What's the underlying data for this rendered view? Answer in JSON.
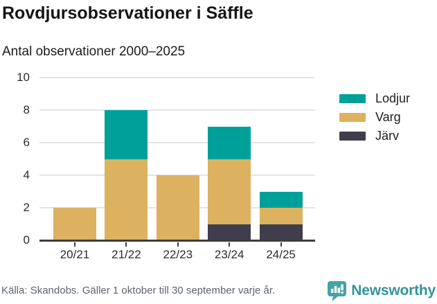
{
  "header": {
    "title": "Rovdjursobservationer i Säffle",
    "subtitle": "Antal observationer 2000–2025"
  },
  "chart_data": {
    "type": "bar",
    "stacked": true,
    "title": "Rovdjursobservationer i Säffle",
    "subtitle": "Antal observationer 2000–2025",
    "categories": [
      "20/21",
      "21/22",
      "22/23",
      "23/24",
      "24/25"
    ],
    "series": [
      {
        "name": "Järv",
        "color": "#403e4c",
        "values": [
          0,
          0,
          0,
          1,
          1
        ]
      },
      {
        "name": "Varg",
        "color": "#dcb260",
        "values": [
          2,
          5,
          4,
          4,
          1
        ]
      },
      {
        "name": "Lodjur",
        "color": "#00a09a",
        "values": [
          0,
          3,
          0,
          2,
          1
        ]
      }
    ],
    "totals": [
      2,
      8,
      4,
      7,
      3
    ],
    "legend_order": [
      "Lodjur",
      "Varg",
      "Järv"
    ],
    "legend_position": "right",
    "grid": true,
    "ylim": [
      0,
      10
    ],
    "yticks": [
      0,
      2,
      4,
      6,
      8,
      10
    ],
    "xlabel": "",
    "ylabel": ""
  },
  "footer": {
    "source": "Källa: Skandobs. Gäller 1 oktober till 30 september varje år.",
    "brand": "Newsworthy"
  },
  "colors": {
    "lodjur": "#00a09a",
    "varg": "#dcb260",
    "jarv": "#403e4c",
    "grid": "#e4e4e4",
    "axis": "#3d3d3d",
    "brand_logo": "#46a2a6",
    "brand_text": "#33939b"
  }
}
